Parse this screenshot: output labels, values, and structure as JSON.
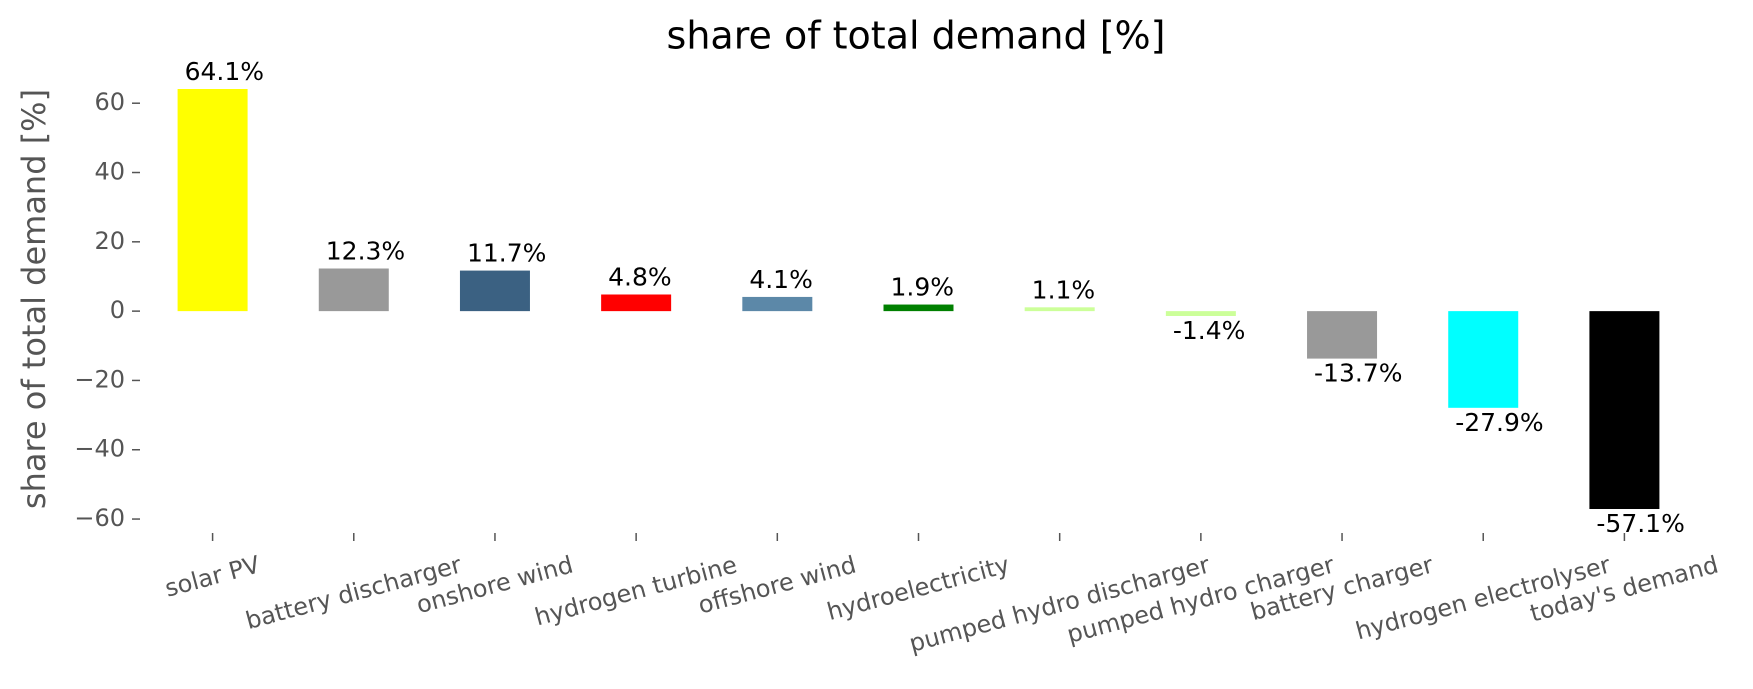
{
  "chart_data": {
    "type": "bar",
    "title": "share of total demand [%]",
    "ylabel": "share of total demand [%]",
    "categories": [
      "solar PV",
      "battery discharger",
      "onshore wind",
      "hydrogen turbine",
      "offshore wind",
      "hydroelectricity",
      "pumped hydro discharger",
      "pumped hydro charger",
      "battery charger",
      "hydrogen electrolyser",
      "today's demand"
    ],
    "values": [
      64.1,
      12.3,
      11.7,
      4.8,
      4.1,
      1.9,
      1.1,
      -1.4,
      -13.7,
      -27.9,
      -57.1
    ],
    "value_labels": [
      "64.1%",
      "12.3%",
      "11.7%",
      "4.8%",
      "4.1%",
      "1.9%",
      "1.1%",
      "-1.4%",
      "-13.7%",
      "-27.9%",
      "-57.1%"
    ],
    "colors": [
      "#ffff00",
      "#999999",
      "#3b6182",
      "#ff0000",
      "#5c88a8",
      "#008000",
      "#ccff99",
      "#ccff99",
      "#999999",
      "#00ffff",
      "#000000"
    ],
    "ylim": [
      -63.16,
      70.16
    ],
    "yticks": [
      {
        "value": -60,
        "label": "−60"
      },
      {
        "value": -40,
        "label": "−40"
      },
      {
        "value": -20,
        "label": "−20"
      },
      0,
      20,
      40,
      60
    ],
    "grid": false
  }
}
